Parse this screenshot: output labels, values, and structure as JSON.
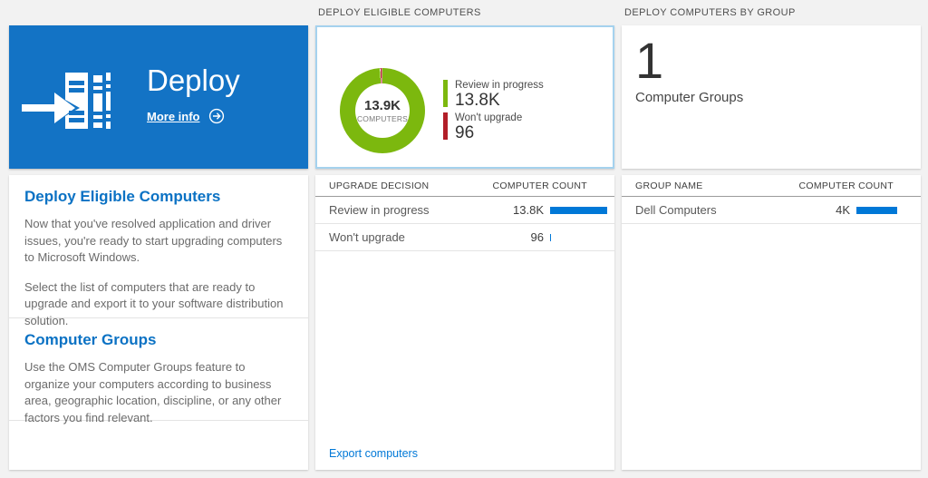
{
  "colors": {
    "background": "#f2f2f2",
    "tile_blue": "#1373c5",
    "heading_blue": "#0b72c4",
    "link_blue": "#0078d7",
    "bar_blue": "#0078d7",
    "donut_green": "#7cb80e",
    "donut_red": "#b21e28",
    "card_border_selected": "#a5d2ee"
  },
  "left": {
    "tile": {
      "title": "Deploy",
      "more_info_label": "More info"
    },
    "sections": [
      {
        "heading": "Deploy Eligible Computers",
        "para1": "Now that you've resolved application and driver issues, you're ready to start upgrading computers to Microsoft Windows.",
        "para2": "Select the list of computers that are ready to upgrade and export it to your software distribution solution."
      },
      {
        "heading": "Computer Groups",
        "para1": "Use the OMS Computer Groups feature to organize your computers according to business area, geographic location, discipline, or any other factors you find relevant."
      }
    ]
  },
  "middle": {
    "section_title": "DEPLOY ELIGIBLE COMPUTERS",
    "donut": {
      "center_value": "13.9K",
      "center_label": "COMPUTERS",
      "segments": [
        {
          "color": "#7cb80e",
          "to": 356.4
        },
        {
          "color": "#ffffff",
          "to": 357.2
        },
        {
          "color": "#b21e28",
          "to": 359.4
        },
        {
          "color": "#ffffff",
          "to": 360
        }
      ],
      "legend": [
        {
          "label": "Review in progress",
          "value": "13.8K",
          "numeric": 13800,
          "color": "#7cb80e"
        },
        {
          "label": "Won't upgrade",
          "value": "96",
          "numeric": 96,
          "color": "#b21e28"
        }
      ]
    },
    "table": {
      "header_left": "UPGRADE DECISION",
      "header_right": "COMPUTER COUNT",
      "rows": [
        {
          "name": "Review in progress",
          "value": "13.8K",
          "bar_pct": 100
        },
        {
          "name": "Won't upgrade",
          "value": "96",
          "bar_pct": 2
        }
      ]
    },
    "export_link": "Export computers"
  },
  "right": {
    "section_title": "DEPLOY COMPUTERS BY GROUP",
    "summary": {
      "count": "1",
      "label": "Computer Groups"
    },
    "table": {
      "header_left": "GROUP NAME",
      "header_right": "COMPUTER COUNT",
      "rows": [
        {
          "name": "Dell Computers",
          "value": "4K",
          "bar_pct": 71
        }
      ]
    }
  }
}
